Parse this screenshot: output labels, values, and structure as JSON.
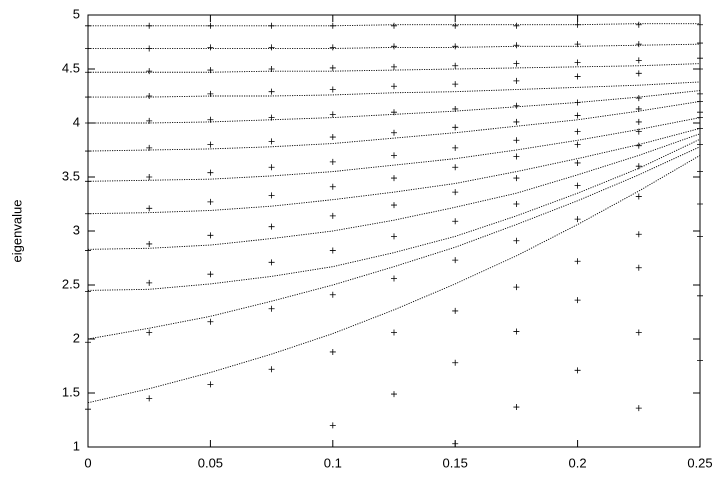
{
  "chart_data": {
    "type": "line",
    "y_label": "eigenvalue",
    "color": "#000000",
    "x": [
      0,
      0.025,
      0.05,
      0.075,
      0.1,
      0.125,
      0.15,
      0.175,
      0.2,
      0.225,
      0.25
    ],
    "xlim": [
      0,
      0.25
    ],
    "xticks": [
      0,
      0.05,
      0.1,
      0.15,
      0.2,
      0.25
    ],
    "ylim": [
      1,
      5
    ],
    "yticks": [
      1,
      1.5,
      2,
      2.5,
      3,
      3.5,
      4,
      4.5,
      5
    ],
    "grid": false,
    "series": [
      {
        "mode": "lines",
        "values": [
          1.41,
          1.54,
          1.69,
          1.86,
          2.05,
          2.27,
          2.51,
          2.77,
          3.06,
          3.37,
          3.7
        ]
      },
      {
        "mode": "lines",
        "values": [
          2.0,
          2.1,
          2.21,
          2.35,
          2.5,
          2.67,
          2.85,
          3.06,
          3.28,
          3.52,
          3.78
        ]
      },
      {
        "mode": "lines",
        "values": [
          2.45,
          2.46,
          2.51,
          2.58,
          2.67,
          2.8,
          2.95,
          3.14,
          3.35,
          3.58,
          3.85
        ]
      },
      {
        "mode": "lines",
        "values": [
          2.83,
          2.84,
          2.87,
          2.93,
          3.0,
          3.1,
          3.22,
          3.35,
          3.52,
          3.7,
          3.9
        ]
      },
      {
        "mode": "lines",
        "values": [
          3.16,
          3.17,
          3.19,
          3.23,
          3.29,
          3.36,
          3.44,
          3.55,
          3.67,
          3.8,
          3.95
        ]
      },
      {
        "mode": "lines",
        "values": [
          3.46,
          3.47,
          3.48,
          3.51,
          3.55,
          3.61,
          3.67,
          3.75,
          3.84,
          3.94,
          4.05
        ]
      },
      {
        "mode": "lines",
        "values": [
          3.74,
          3.75,
          3.76,
          3.78,
          3.81,
          3.86,
          3.91,
          3.97,
          4.03,
          4.11,
          4.2
        ]
      },
      {
        "mode": "lines",
        "values": [
          4.0,
          4.0,
          4.01,
          4.03,
          4.05,
          4.08,
          4.11,
          4.15,
          4.19,
          4.24,
          4.3
        ]
      },
      {
        "mode": "lines",
        "values": [
          4.24,
          4.24,
          4.25,
          4.25,
          4.26,
          4.28,
          4.29,
          4.31,
          4.33,
          4.35,
          4.38
        ]
      },
      {
        "mode": "lines",
        "values": [
          4.47,
          4.47,
          4.47,
          4.48,
          4.48,
          4.49,
          4.5,
          4.51,
          4.52,
          4.53,
          4.55
        ]
      },
      {
        "mode": "lines",
        "values": [
          4.69,
          4.69,
          4.69,
          4.69,
          4.69,
          4.7,
          4.7,
          4.71,
          4.71,
          4.72,
          4.73
        ]
      },
      {
        "mode": "lines",
        "values": [
          4.9,
          4.9,
          4.9,
          4.9,
          4.9,
          4.91,
          4.91,
          4.91,
          4.91,
          4.92,
          4.92
        ]
      },
      {
        "mode": "points",
        "values": [
          1.35,
          1.45,
          1.58,
          1.72,
          1.88,
          2.06,
          2.26,
          2.48,
          2.72,
          2.97,
          3.25
        ]
      },
      {
        "mode": "points",
        "values": [
          1.97,
          2.06,
          2.16,
          2.28,
          2.41,
          2.56,
          2.73,
          2.91,
          3.11,
          3.32,
          3.55
        ]
      },
      {
        "mode": "points",
        "values": [
          2.44,
          2.52,
          2.6,
          2.71,
          2.82,
          2.95,
          3.09,
          3.25,
          3.42,
          3.6,
          3.8
        ]
      },
      {
        "mode": "points",
        "values": [
          2.82,
          2.88,
          2.96,
          3.04,
          3.14,
          3.24,
          3.36,
          3.49,
          3.63,
          3.79,
          3.95
        ]
      },
      {
        "mode": "points",
        "values": [
          3.16,
          3.21,
          3.27,
          3.33,
          3.41,
          3.49,
          3.59,
          3.69,
          3.8,
          3.92,
          4.05
        ]
      },
      {
        "mode": "points",
        "values": [
          3.46,
          3.5,
          3.54,
          3.59,
          3.64,
          3.7,
          3.77,
          3.84,
          3.92,
          4.01,
          4.1
        ]
      },
      {
        "mode": "points",
        "values": [
          3.74,
          3.77,
          3.8,
          3.83,
          3.87,
          3.91,
          3.96,
          4.01,
          4.07,
          4.13,
          4.2
        ]
      },
      {
        "mode": "points",
        "values": [
          4.0,
          4.02,
          4.03,
          4.05,
          4.08,
          4.1,
          4.13,
          4.16,
          4.19,
          4.23,
          4.27
        ]
      },
      {
        "mode": "points",
        "values": [
          4.24,
          4.25,
          4.27,
          4.29,
          4.31,
          4.34,
          4.36,
          4.39,
          4.43,
          4.46,
          4.5
        ]
      },
      {
        "mode": "points",
        "values": [
          4.47,
          4.48,
          4.49,
          4.5,
          4.51,
          4.52,
          4.53,
          4.55,
          4.56,
          4.58,
          4.6
        ]
      },
      {
        "mode": "points",
        "values": [
          4.69,
          4.69,
          4.7,
          4.7,
          4.7,
          4.71,
          4.71,
          4.72,
          4.73,
          4.73,
          4.74
        ]
      },
      {
        "mode": "points",
        "values": [
          4.9,
          4.9,
          4.9,
          4.9,
          4.9,
          4.9,
          4.9,
          4.9,
          4.91,
          4.91,
          4.91
        ]
      },
      {
        "mode": "points",
        "values": [
          null,
          null,
          null,
          null,
          1.2,
          1.49,
          1.78,
          2.07,
          2.36,
          2.66,
          2.95
        ]
      },
      {
        "mode": "points",
        "values": [
          null,
          null,
          null,
          null,
          null,
          null,
          1.03,
          1.37,
          1.71,
          2.06,
          2.4
        ]
      },
      {
        "mode": "points",
        "values": [
          null,
          null,
          null,
          null,
          null,
          null,
          null,
          null,
          null,
          1.36,
          1.8
        ]
      }
    ]
  }
}
